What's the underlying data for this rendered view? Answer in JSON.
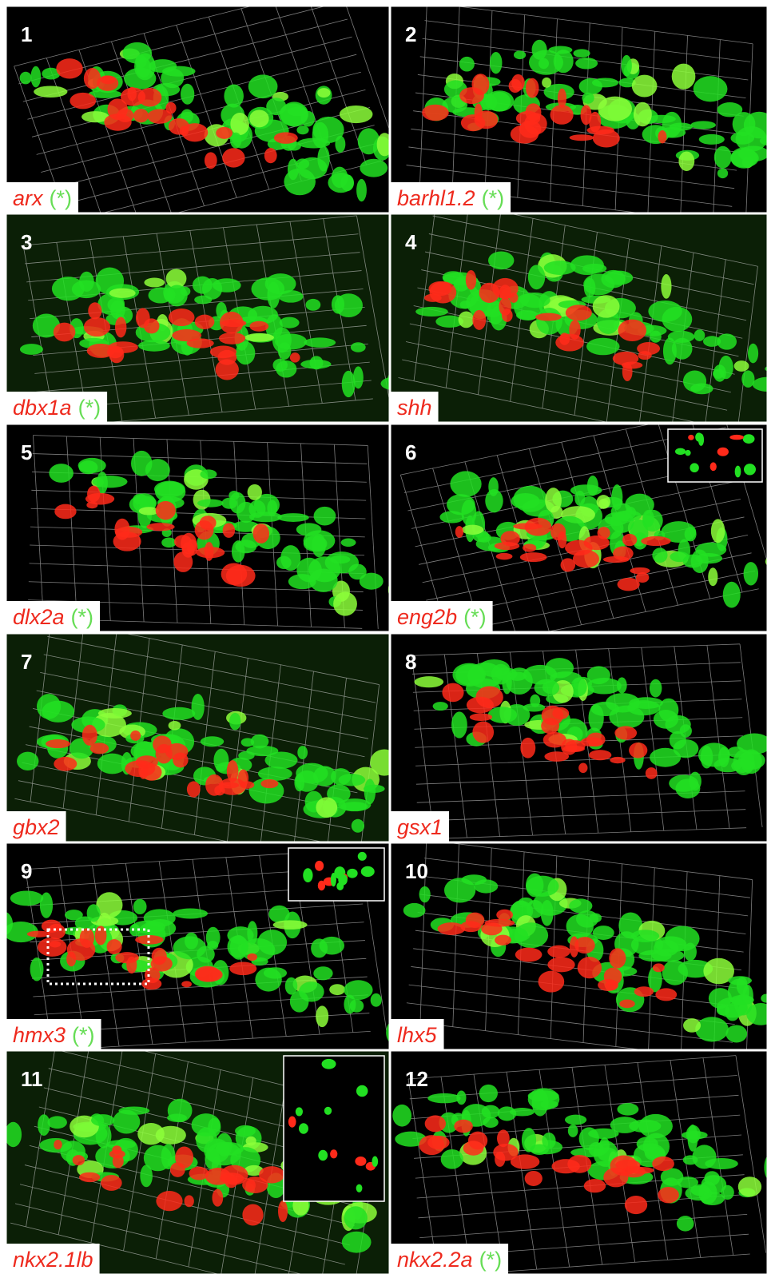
{
  "panels": [
    {
      "number": "1",
      "gene": "arx",
      "marker": "(*)"
    },
    {
      "number": "2",
      "gene": "barhl1.2",
      "marker": "(*)"
    },
    {
      "number": "3",
      "gene": "dbx1a",
      "marker": "(*)"
    },
    {
      "number": "4",
      "gene": "shh"
    },
    {
      "number": "5",
      "gene": "dlx2a",
      "marker": "(*)"
    },
    {
      "number": "6",
      "gene": "eng2b",
      "marker": "(*)"
    },
    {
      "number": "7",
      "gene": "gbx2"
    },
    {
      "number": "8",
      "gene": "gsx1"
    },
    {
      "number": "9",
      "gene": "hmx3",
      "marker": "(*)"
    },
    {
      "number": "10",
      "gene": "lhx5"
    },
    {
      "number": "11",
      "gene": "nkx2.1lb"
    },
    {
      "number": "12",
      "gene": "nkx2.2a",
      "marker": "(*)"
    }
  ]
}
